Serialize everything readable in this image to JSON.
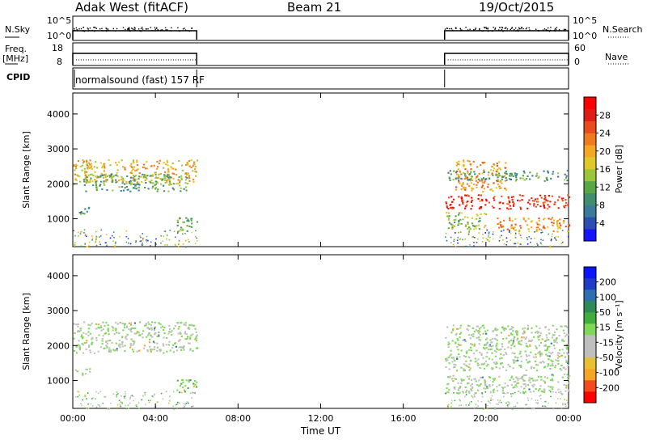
{
  "header": {
    "site": "Adak West (fitACF)",
    "beam": "Beam 21",
    "date": "19/Oct/2015"
  },
  "panels": {
    "nsky": {
      "label": "N.Sky",
      "ticks": [
        "10^5",
        "10^0"
      ],
      "right_label": "N.Search"
    },
    "freq": {
      "label_line1": "Freq.",
      "label_line2": "[MHz]",
      "left_ticks": [
        "18",
        "8"
      ],
      "right_ticks": [
        "60",
        "0"
      ],
      "right_label": "Nave"
    },
    "cpid": {
      "label": "CPID",
      "text": "normalsound (fast) 157 RF"
    }
  },
  "chart_data": [
    {
      "type": "heatmap",
      "quantity": "Power",
      "ylabel": "Slant Range [km]",
      "ylim": [
        200,
        4600
      ],
      "yticks": [
        "1000",
        "2000",
        "3000",
        "4000"
      ],
      "colorbar_label": "Power [dB]",
      "colorbar_ticks": [
        "4",
        "8",
        "12",
        "16",
        "20",
        "24",
        "28"
      ],
      "colorbar_colors": [
        "#1414ff",
        "#2b4fb0",
        "#3a7a9a",
        "#3f8f6f",
        "#5aa645",
        "#9bc63a",
        "#e0c828",
        "#f5a623",
        "#f07a1e",
        "#ea4a1c",
        "#e01d14",
        "#ff0000"
      ],
      "regions": [
        {
          "t0": 0.0,
          "t1": 6.0,
          "r0": 2000,
          "r1": 2700,
          "level": 18
        },
        {
          "t0": 0.5,
          "t1": 5.5,
          "r0": 1800,
          "r1": 2300,
          "level": 10
        },
        {
          "t0": 0.1,
          "t1": 0.8,
          "r0": 1150,
          "r1": 1350,
          "level": 6
        },
        {
          "t0": 5.0,
          "t1": 6.0,
          "r0": 650,
          "r1": 1050,
          "level": 11
        },
        {
          "t0": 18.0,
          "t1": 24.0,
          "r0": 1300,
          "r1": 1700,
          "level": 27
        },
        {
          "t0": 18.5,
          "t1": 21.0,
          "r0": 1800,
          "r1": 2700,
          "level": 20
        },
        {
          "t0": 18.0,
          "t1": 24.0,
          "r0": 2100,
          "r1": 2400,
          "level": 9
        },
        {
          "t0": 18.0,
          "t1": 20.0,
          "r0": 700,
          "r1": 1200,
          "level": 13
        },
        {
          "t0": 20.5,
          "t1": 24.0,
          "r0": 650,
          "r1": 1050,
          "level": 20
        }
      ]
    },
    {
      "type": "heatmap",
      "quantity": "Velocity",
      "ylabel": "Slant Range [km]",
      "ylim": [
        200,
        4600
      ],
      "yticks": [
        "1000",
        "2000",
        "3000",
        "4000"
      ],
      "xlabel": "Time UT",
      "xticks": [
        "00:00",
        "04:00",
        "08:00",
        "12:00",
        "16:00",
        "20:00",
        "00:00"
      ],
      "colorbar_label": "Velocity [m s⁻¹]",
      "colorbar_ticks": [
        "-200",
        "-100",
        "-50",
        "-15",
        "15",
        "50",
        "100",
        "200"
      ],
      "colorbar_colors": [
        "#ff0000",
        "#f54a1c",
        "#f5a623",
        "#e8c030",
        "#bfbfbf",
        "#bfbfbf",
        "#7ed957",
        "#3fae3a",
        "#2e8b57",
        "#2e6fb0",
        "#1e3cc8",
        "#0a14ff"
      ],
      "regions": [
        {
          "t0": 0.0,
          "t1": 6.0,
          "r0": 1800,
          "r1": 2700,
          "level": 0
        },
        {
          "t0": 0.1,
          "t1": 0.8,
          "r0": 1150,
          "r1": 1350,
          "level": 0
        },
        {
          "t0": 5.0,
          "t1": 6.0,
          "r0": 650,
          "r1": 1050,
          "level": 30
        },
        {
          "t0": 18.0,
          "t1": 24.0,
          "r0": 1300,
          "r1": 2600,
          "level": 0
        },
        {
          "t0": 18.0,
          "t1": 24.0,
          "r0": 650,
          "r1": 1200,
          "level": 0
        }
      ]
    }
  ]
}
